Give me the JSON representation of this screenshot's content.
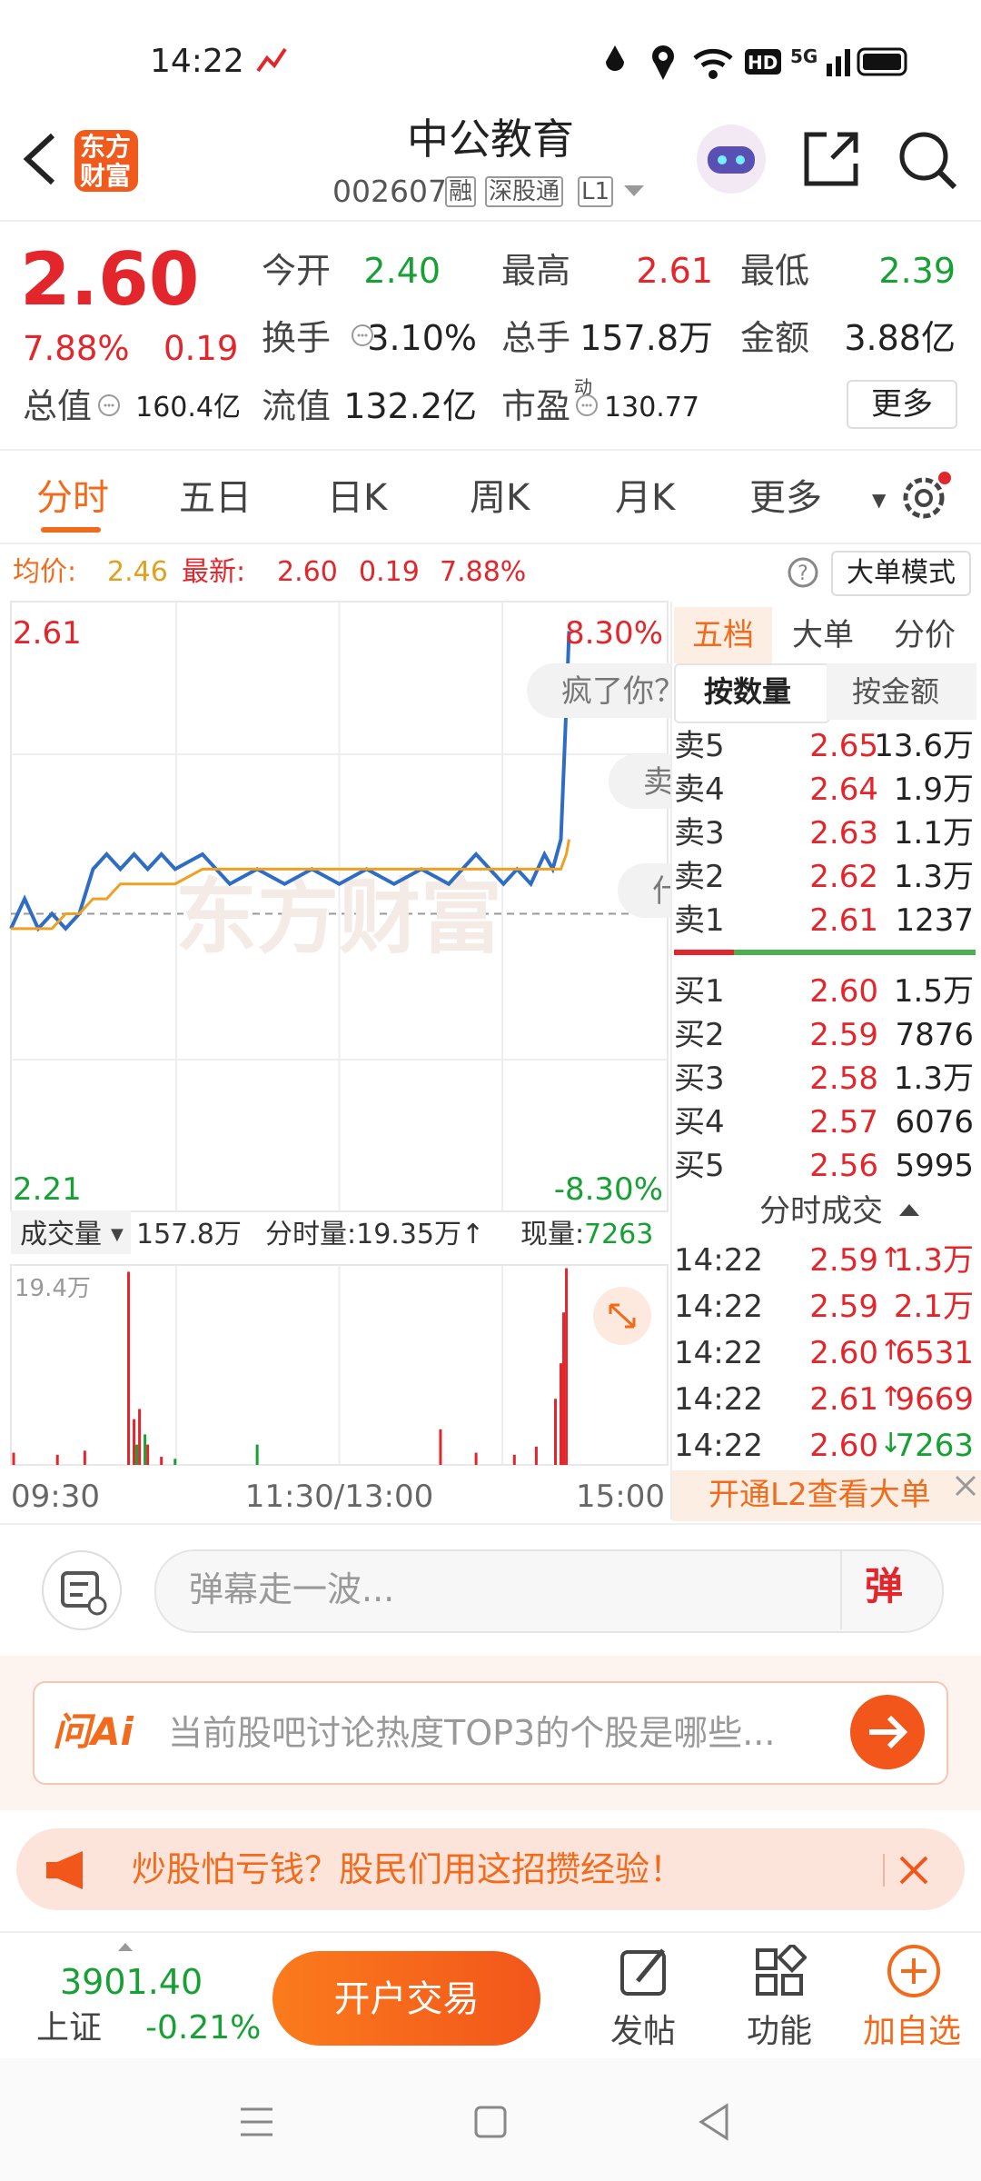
{
  "status_bar": {
    "time": "14:22",
    "hd": "HD",
    "network": "5G"
  },
  "header": {
    "logo": [
      "东方",
      "财富"
    ],
    "title": "中公教育",
    "code": "002607",
    "tags": [
      "融",
      "深股通",
      "L1"
    ]
  },
  "quote": {
    "price": "2.60",
    "change_pct": "7.88%",
    "change": "0.19",
    "stats": [
      {
        "label": "今开",
        "value": "2.40"
      },
      {
        "label": "最高",
        "value": "2.61"
      },
      {
        "label": "最低",
        "value": "2.39"
      },
      {
        "label": "换手",
        "value": "3.10%"
      },
      {
        "label": "总手",
        "value": "157.8万"
      },
      {
        "label": "金额",
        "value": "3.88亿"
      },
      {
        "label": "总值",
        "value": "160.4亿"
      },
      {
        "label": "流值",
        "value": "132.2亿"
      },
      {
        "label": "市盈",
        "sup": "动",
        "value": "130.77"
      }
    ],
    "more": "更多"
  },
  "tabs": [
    "分时",
    "五日",
    "日K",
    "周K",
    "月K",
    "更多"
  ],
  "info": {
    "avg_label": "均价:",
    "avg": "2.46",
    "latest_label": "最新:",
    "latest": "2.60",
    "change": "0.19",
    "pct": "7.88%",
    "mode": "大单模式"
  },
  "intraday": {
    "type": "line",
    "top_label": "2.61",
    "bottom_label": "2.21",
    "top_pct": "8.30%",
    "bottom_pct": "-8.30%",
    "watermark": "东方财富",
    "bubbles": [
      "疯了你？",
      "卖",
      "什"
    ],
    "xlim": [
      0,
      240
    ],
    "ylim": [
      2.21,
      2.61
    ],
    "xticks": [
      {
        "value": 0,
        "label": "09:30"
      },
      {
        "value": 120,
        "label": "11:30/13:00"
      },
      {
        "value": 240,
        "label": "15:00"
      }
    ],
    "x": [
      0,
      5,
      10,
      15,
      20,
      25,
      30,
      35,
      40,
      45,
      50,
      55,
      60,
      70,
      80,
      90,
      100,
      110,
      120,
      130,
      140,
      150,
      160,
      170,
      180,
      185,
      190,
      195,
      198,
      201,
      203,
      204
    ],
    "series": [
      {
        "name": "price",
        "color": "#2f6dc4",
        "values": [
          2.4,
          2.42,
          2.4,
          2.41,
          2.4,
          2.41,
          2.44,
          2.45,
          2.44,
          2.45,
          2.44,
          2.45,
          2.44,
          2.45,
          2.43,
          2.44,
          2.43,
          2.44,
          2.43,
          2.44,
          2.43,
          2.44,
          2.43,
          2.45,
          2.43,
          2.44,
          2.43,
          2.45,
          2.44,
          2.46,
          2.55,
          2.6
        ]
      },
      {
        "name": "avg",
        "color": "#f0a020",
        "values": [
          2.4,
          2.4,
          2.4,
          2.4,
          2.41,
          2.41,
          2.42,
          2.42,
          2.43,
          2.43,
          2.43,
          2.43,
          2.43,
          2.44,
          2.44,
          2.44,
          2.44,
          2.44,
          2.44,
          2.44,
          2.44,
          2.44,
          2.44,
          2.44,
          2.44,
          2.44,
          2.44,
          2.44,
          2.44,
          2.44,
          2.45,
          2.46
        ]
      }
    ]
  },
  "volume": {
    "label": "成交量",
    "total": "157.8万",
    "minute_label": "分时量:19.35万↑",
    "current_label": "现量:",
    "current": "7263",
    "max_label": "19.4万",
    "ylim": [
      0,
      19.4
    ],
    "x": [
      1,
      17,
      27,
      43,
      45,
      46,
      47,
      49,
      50,
      55,
      60,
      90,
      157,
      170,
      184,
      192,
      199,
      201,
      202,
      203
    ],
    "values": [
      1.2,
      1.0,
      1.4,
      19.0,
      4.5,
      2.0,
      5.5,
      3.0,
      2.0,
      0.8,
      0.6,
      2.0,
      3.5,
      1.2,
      1.0,
      1.8,
      6.5,
      10.0,
      15.0,
      19.35
    ],
    "colors": [
      "#e3262b",
      "#e3262b",
      "#e3262b",
      "#e3262b",
      "#e3262b",
      "#17a034",
      "#e3262b",
      "#17a034",
      "#e3262b",
      "#e3262b",
      "#17a034",
      "#17a034",
      "#e3262b",
      "#e3262b",
      "#e3262b",
      "#e3262b",
      "#e3262b",
      "#e3262b",
      "#e3262b",
      "#e3262b"
    ]
  },
  "orderbook": {
    "tabs": [
      "五档",
      "大单",
      "分价"
    ],
    "sub_tabs": [
      "按数量",
      "按金额"
    ],
    "asks": [
      {
        "label": "卖5",
        "price": "2.65",
        "vol": "13.6万"
      },
      {
        "label": "卖4",
        "price": "2.64",
        "vol": "1.9万"
      },
      {
        "label": "卖3",
        "price": "2.63",
        "vol": "1.1万"
      },
      {
        "label": "卖2",
        "price": "2.62",
        "vol": "1.3万"
      },
      {
        "label": "卖1",
        "price": "2.61",
        "vol": "1237"
      }
    ],
    "bids": [
      {
        "label": "买1",
        "price": "2.60",
        "vol": "1.5万"
      },
      {
        "label": "买2",
        "price": "2.59",
        "vol": "7876"
      },
      {
        "label": "买3",
        "price": "2.58",
        "vol": "1.3万"
      },
      {
        "label": "买4",
        "price": "2.57",
        "vol": "6076"
      },
      {
        "label": "买5",
        "price": "2.56",
        "vol": "5995"
      }
    ],
    "trades_title": "分时成交",
    "trades": [
      {
        "time": "14:22",
        "price": "2.59",
        "arrow": "↑",
        "vol": "1.3万"
      },
      {
        "time": "14:22",
        "price": "2.59",
        "arrow": "",
        "vol": "2.1万"
      },
      {
        "time": "14:22",
        "price": "2.60",
        "arrow": "↑",
        "vol": "6531"
      },
      {
        "time": "14:22",
        "price": "2.61",
        "arrow": "↑",
        "vol": "9669"
      },
      {
        "time": "14:22",
        "price": "2.60",
        "arrow": "↓",
        "vol": "7263"
      }
    ],
    "l2": "开通L2查看大单"
  },
  "comment": {
    "placeholder": "弹幕走一波...",
    "button": "弹"
  },
  "ai": {
    "logo": "问Ai",
    "prompt": "当前股吧讨论热度TOP3的个股是哪些..."
  },
  "banner": {
    "text": "炒股怕亏钱？股民们用这招攒经验！"
  },
  "bottom": {
    "index_value": "3901.40",
    "index_name": "上证",
    "index_change": "-0.21%",
    "trade_button": "开户交易",
    "actions": [
      "发帖",
      "功能",
      "加自选"
    ]
  }
}
